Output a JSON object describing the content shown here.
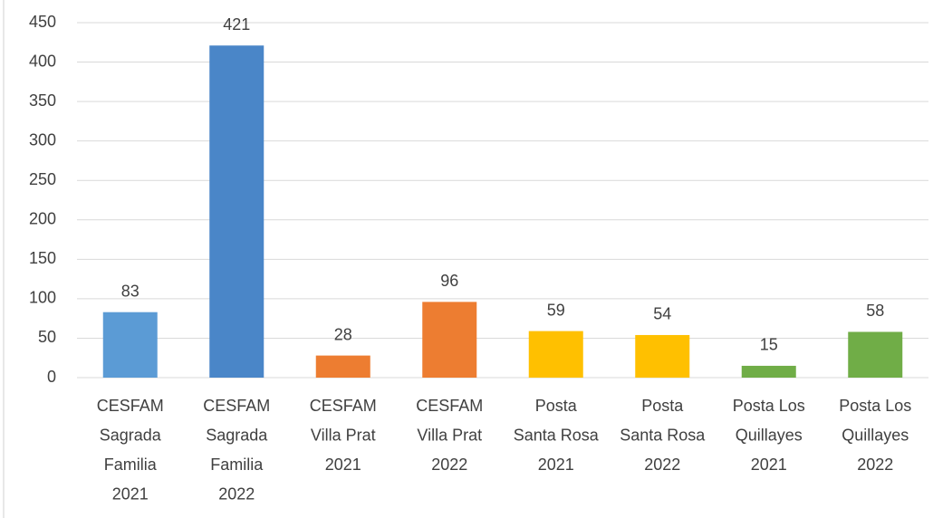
{
  "chart_data": {
    "type": "bar",
    "categories": [
      [
        "CESFAM",
        "Sagrada",
        "Familia",
        "2021"
      ],
      [
        "CESFAM",
        "Sagrada",
        "Familia",
        "2022"
      ],
      [
        "CESFAM",
        "Villa Prat",
        "2021"
      ],
      [
        "CESFAM",
        "Villa Prat",
        "2022"
      ],
      [
        "Posta",
        "Santa Rosa",
        "2021"
      ],
      [
        "Posta",
        "Santa Rosa",
        "2022"
      ],
      [
        "Posta Los",
        "Quillayes",
        "2021"
      ],
      [
        "Posta Los",
        "Quillayes",
        "2022"
      ]
    ],
    "values": [
      83,
      421,
      28,
      96,
      59,
      54,
      15,
      58
    ],
    "colors": [
      "#5b9bd5",
      "#4a86c8",
      "#ed7d31",
      "#ed7d31",
      "#ffc000",
      "#ffc000",
      "#70ad47",
      "#70ad47"
    ],
    "ylim": [
      0,
      450
    ],
    "yticks": [
      0,
      50,
      100,
      150,
      200,
      250,
      300,
      350,
      400,
      450
    ],
    "grid": true
  }
}
